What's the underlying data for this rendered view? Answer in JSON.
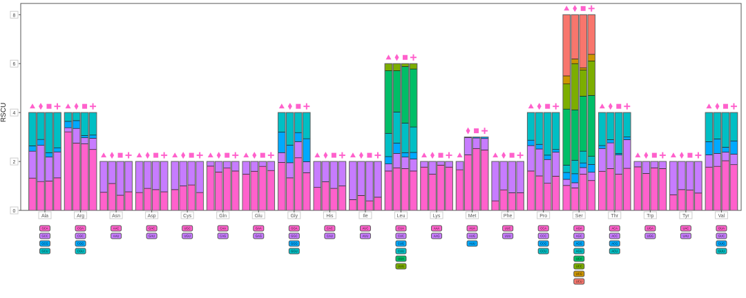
{
  "chart_data": {
    "type": "bar",
    "stacked": true,
    "ylabel": "RSCU",
    "ylim": [
      0,
      8.46
    ],
    "yticks": [
      0,
      2,
      4,
      6,
      8
    ],
    "grid": false,
    "markers": [
      "triangle",
      "diamond",
      "square",
      "plus"
    ],
    "marker_color": "#FF61CC",
    "codon_colors": [
      "#FF61CC",
      "#C77CFF",
      "#00A9FF",
      "#00BFC4",
      "#00BE67",
      "#7CAE00",
      "#CD9600",
      "#F8766D"
    ],
    "groups": [
      {
        "aa": "Ala",
        "codons": [
          "GCA",
          "GCC",
          "GCG",
          "GCU"
        ],
        "bars": [
          [
            1.32,
            1.1,
            0.22,
            1.36
          ],
          [
            1.18,
            1.48,
            0.24,
            1.1
          ],
          [
            1.2,
            0.98,
            0.18,
            1.64
          ],
          [
            1.33,
            1.06,
            0.17,
            1.44
          ]
        ]
      },
      {
        "aa": "Arg",
        "codons": [
          "CGA",
          "CGC",
          "CGG",
          "CGU"
        ],
        "bars": [
          [
            3.21,
            0.17,
            0.26,
            0.36
          ],
          [
            2.75,
            0.6,
            0.32,
            0.33
          ],
          [
            2.72,
            0.25,
            0.09,
            0.94
          ],
          [
            2.49,
            0.46,
            0.13,
            0.92
          ]
        ]
      },
      {
        "aa": "Asn",
        "codons": [
          "AAC",
          "AAU"
        ],
        "bars": [
          [
            0.74,
            1.26
          ],
          [
            1.1,
            0.9
          ],
          [
            0.62,
            1.38
          ],
          [
            0.76,
            1.24
          ]
        ]
      },
      {
        "aa": "Asp",
        "codons": [
          "GAC",
          "GAU"
        ],
        "bars": [
          [
            0.73,
            1.27
          ],
          [
            0.9,
            1.1
          ],
          [
            0.85,
            1.15
          ],
          [
            0.76,
            1.24
          ]
        ]
      },
      {
        "aa": "Cys",
        "codons": [
          "UGC",
          "UGU"
        ],
        "bars": [
          [
            0.85,
            1.15
          ],
          [
            1.0,
            1.0
          ],
          [
            1.04,
            0.96
          ],
          [
            0.73,
            1.27
          ]
        ]
      },
      {
        "aa": "Gln",
        "codons": [
          "CAA",
          "CAG"
        ],
        "bars": [
          [
            1.81,
            0.19
          ],
          [
            1.57,
            0.43
          ],
          [
            1.73,
            0.27
          ],
          [
            1.61,
            0.39
          ]
        ]
      },
      {
        "aa": "Glu",
        "codons": [
          "GAA",
          "GAG"
        ],
        "bars": [
          [
            1.48,
            0.52
          ],
          [
            1.6,
            0.4
          ],
          [
            1.8,
            0.2
          ],
          [
            1.63,
            0.37
          ]
        ]
      },
      {
        "aa": "Gly",
        "codons": [
          "GGA",
          "GGC",
          "GGG",
          "GGU"
        ],
        "bars": [
          [
            1.96,
            0.4,
            0.84,
            0.8
          ],
          [
            1.33,
            0.62,
            0.72,
            1.33
          ],
          [
            2.15,
            0.66,
            0.37,
            0.82
          ],
          [
            1.54,
            0.45,
            0.94,
            1.07
          ]
        ]
      },
      {
        "aa": "His",
        "codons": [
          "CAC",
          "CAU"
        ],
        "bars": [
          [
            0.94,
            1.06
          ],
          [
            1.17,
            0.83
          ],
          [
            0.9,
            1.1
          ],
          [
            1.0,
            1.0
          ]
        ]
      },
      {
        "aa": "Ile",
        "codons": [
          "AUC",
          "AUU"
        ],
        "bars": [
          [
            0.44,
            1.56
          ],
          [
            0.61,
            1.39
          ],
          [
            0.39,
            1.61
          ],
          [
            0.54,
            1.46
          ]
        ]
      },
      {
        "aa": "Leu",
        "codons": [
          "CUA",
          "CUC",
          "CUG",
          "CUU",
          "UUA",
          "UUG"
        ],
        "bars": [
          [
            1.61,
            0.29,
            0.3,
            0.95,
            2.56,
            0.29
          ],
          [
            1.74,
            0.59,
            0.42,
            1.27,
            1.69,
            0.29
          ],
          [
            1.71,
            0.47,
            0.18,
            1.21,
            2.31,
            0.12
          ],
          [
            1.61,
            0.49,
            0.27,
            1.04,
            2.37,
            0.22
          ]
        ]
      },
      {
        "aa": "Lys",
        "codons": [
          "AAA",
          "AAG"
        ],
        "bars": [
          [
            1.77,
            0.23
          ],
          [
            1.48,
            0.52
          ],
          [
            1.85,
            0.15
          ],
          [
            1.77,
            0.23
          ]
        ]
      },
      {
        "aa": "Met",
        "codons": [
          "AUA",
          "AUG",
          "AUU"
        ],
        "bars": [
          [
            1.66,
            0.34
          ],
          [
            2.27,
            0.71,
            0.02
          ],
          [
            2.53,
            0.43,
            0.04
          ],
          [
            2.47,
            0.47,
            0.06
          ]
        ]
      },
      {
        "aa": "Phe",
        "codons": [
          "UUC",
          "UUU"
        ],
        "bars": [
          [
            0.39,
            1.61
          ],
          [
            0.84,
            1.16
          ],
          [
            0.72,
            1.28
          ],
          [
            0.72,
            1.28
          ]
        ]
      },
      {
        "aa": "Pro",
        "codons": [
          "CCA",
          "CCC",
          "CCG",
          "CCU"
        ],
        "bars": [
          [
            1.61,
            1.04,
            0.22,
            1.13
          ],
          [
            1.41,
            1.1,
            0.19,
            1.3
          ],
          [
            1.11,
            0.97,
            0.18,
            1.74
          ],
          [
            1.4,
            0.98,
            0.11,
            1.51
          ]
        ]
      },
      {
        "aa": "Ser",
        "codons": [
          "AGA",
          "AGC",
          "AGG",
          "AGU",
          "UCA",
          "UCC",
          "UCG",
          "UCU"
        ],
        "bars": [
          [
            1.02,
            0.25,
            0.28,
            0.3,
            2.29,
            1.03,
            0.33,
            2.5
          ],
          [
            0.92,
            0.21,
            0.37,
            0.55,
            2.06,
            1.89,
            0.19,
            1.81
          ],
          [
            1.48,
            0.27,
            0.19,
            0.48,
            2.25,
            1.07,
            0.09,
            2.17
          ],
          [
            1.22,
            0.34,
            0.32,
            0.33,
            2.49,
            1.41,
            0.27,
            1.62
          ]
        ]
      },
      {
        "aa": "Thr",
        "codons": [
          "ACA",
          "ACC",
          "ACG",
          "ACU"
        ],
        "bars": [
          [
            1.6,
            0.93,
            0.12,
            1.35
          ],
          [
            1.71,
            1.05,
            0.13,
            1.11
          ],
          [
            1.48,
            0.79,
            0.06,
            1.67
          ],
          [
            1.72,
            1.17,
            0.11,
            1.0
          ]
        ]
      },
      {
        "aa": "Trp",
        "codons": [
          "UGA",
          "UGG"
        ],
        "bars": [
          [
            1.78,
            0.22
          ],
          [
            1.51,
            0.49
          ],
          [
            1.74,
            0.26
          ],
          [
            1.71,
            0.29
          ]
        ]
      },
      {
        "aa": "Tyr",
        "codons": [
          "UAC",
          "UAU"
        ],
        "bars": [
          [
            0.64,
            1.36
          ],
          [
            0.85,
            1.15
          ],
          [
            0.83,
            1.17
          ],
          [
            0.71,
            1.29
          ]
        ]
      },
      {
        "aa": "Val",
        "codons": [
          "GUA",
          "GUC",
          "GUG",
          "GUU"
        ],
        "bars": [
          [
            1.77,
            0.5,
            0.54,
            1.19
          ],
          [
            1.8,
            0.53,
            0.59,
            1.08
          ],
          [
            2.03,
            0.35,
            0.2,
            1.42
          ],
          [
            1.87,
            0.43,
            0.54,
            1.16
          ]
        ]
      }
    ]
  }
}
